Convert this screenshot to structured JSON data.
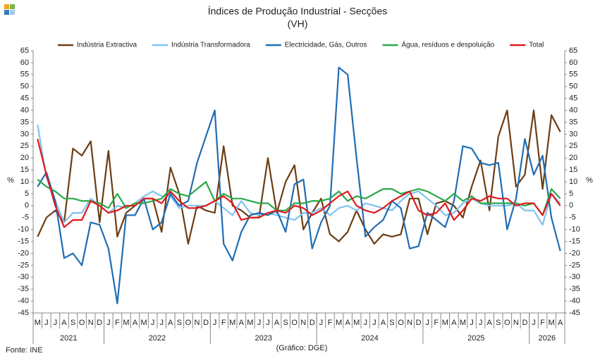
{
  "chart_data": {
    "type": "line",
    "title": "Índices de Produção Industrial - Secções",
    "subtitle": "(VH)",
    "y_label": "%",
    "y2_label": "%",
    "source": "Fonte: INE",
    "credit": "(Gráfico: DGE)",
    "categories": [
      "M",
      "J",
      "J",
      "A",
      "S",
      "O",
      "N",
      "D",
      "J",
      "F",
      "M",
      "A",
      "M",
      "J",
      "J",
      "A",
      "S",
      "O",
      "N",
      "D",
      "J",
      "F",
      "M",
      "A",
      "M",
      "J",
      "J",
      "A",
      "S",
      "O",
      "N",
      "D",
      "J",
      "F",
      "M",
      "A",
      "M",
      "J",
      "J",
      "A",
      "S",
      "O",
      "N",
      "D",
      "J",
      "F",
      "M",
      "A",
      "M",
      "J",
      "J",
      "A",
      "S",
      "O",
      "N",
      "D",
      "J",
      "F",
      "M",
      "A"
    ],
    "years": [
      "2021",
      "2022",
      "2023",
      "2024",
      "2025",
      "2026"
    ],
    "ylim": [
      -45,
      65
    ],
    "yticks": [
      -45,
      -40,
      -35,
      -30,
      -25,
      -20,
      -15,
      -10,
      -5,
      0,
      5,
      10,
      15,
      20,
      25,
      30,
      35,
      40,
      45,
      50,
      55,
      60,
      65
    ],
    "y2lim": [
      -45,
      65
    ],
    "y2ticks": [
      -45,
      -40,
      -35,
      -30,
      -25,
      -20,
      -15,
      -10,
      -5,
      0,
      5,
      10,
      15,
      20,
      25,
      30,
      35,
      40,
      45,
      50,
      55,
      60,
      65
    ],
    "grid": false,
    "series": [
      {
        "name": "Indústria Extractiva",
        "color": "#6b3d13",
        "values": [
          -13,
          -5,
          -2,
          -7,
          24,
          21,
          27,
          -7,
          23,
          -13,
          -3,
          0,
          3,
          3,
          -11,
          16,
          5,
          -16,
          0,
          -2,
          -3,
          25,
          0,
          -2,
          -5,
          -5,
          20,
          -3,
          10,
          17,
          -10,
          -3,
          3,
          -12,
          -15,
          -11,
          -2,
          -10,
          -16,
          -12,
          -13,
          -12,
          3,
          3,
          -12,
          1,
          2,
          0,
          -5,
          8,
          19,
          -2,
          29,
          40,
          8,
          13,
          40,
          7,
          38,
          31
        ]
      },
      {
        "name": "Indústria Transformadora",
        "color": "#7fc3f0",
        "values": [
          34,
          12,
          2,
          -7,
          -3,
          -3,
          3,
          0,
          -3,
          0,
          -1,
          1,
          4,
          6,
          4,
          4,
          -1,
          0,
          0,
          0,
          2,
          -1,
          -4,
          2,
          -3,
          -4,
          -3,
          -4,
          -5,
          -6,
          -3,
          -3,
          -1,
          -4,
          -1,
          0,
          -2,
          1,
          0,
          -1,
          -2,
          2,
          5,
          6,
          3,
          0,
          -4,
          -3,
          1,
          3,
          1,
          0,
          0,
          0,
          1,
          -2,
          -2,
          -8,
          5,
          1
        ]
      },
      {
        "name": "Electricidade, Gás, Outros",
        "color": "#1f6db5",
        "values": [
          8,
          14,
          2,
          -22,
          -20,
          -25,
          -7,
          -8,
          -18,
          -41,
          -4,
          -4,
          3,
          -10,
          -7,
          5,
          0,
          2,
          18,
          29,
          40,
          -16,
          -23,
          -11,
          -4,
          -3,
          -4,
          -2,
          -11,
          9,
          11,
          -18,
          -7,
          0,
          58,
          55,
          20,
          -13,
          -9,
          -6,
          2,
          -1,
          -18,
          -17,
          -3,
          -6,
          -9,
          2,
          25,
          24,
          18,
          17,
          18,
          -10,
          3,
          28,
          13,
          21,
          -5,
          -19
        ]
      },
      {
        "name": "Água, resíduos e despoluição",
        "color": "#2aa84a",
        "values": [
          11,
          8,
          6,
          3,
          3,
          2,
          2,
          1,
          -1,
          5,
          -1,
          1,
          1,
          2,
          3,
          7,
          5,
          4,
          7,
          10,
          2,
          5,
          3,
          3,
          2,
          1,
          1,
          -2,
          -2,
          1,
          1,
          2,
          2,
          3,
          6,
          2,
          4,
          3,
          5,
          7,
          7,
          5,
          6,
          7,
          6,
          4,
          2,
          5,
          2,
          4,
          1,
          1,
          1,
          1,
          1,
          0,
          1,
          -4,
          7,
          3
        ]
      },
      {
        "name": "Total",
        "color": "#e0191b",
        "values": [
          28,
          13,
          0,
          -9,
          -6,
          -6,
          2,
          0,
          -3,
          -2,
          0,
          0,
          3,
          3,
          1,
          6,
          2,
          -1,
          -1,
          0,
          2,
          4,
          1,
          -6,
          -5,
          -5,
          -3,
          -2,
          -3,
          0,
          -1,
          -4,
          -2,
          1,
          4,
          6,
          0,
          -2,
          -3,
          -1,
          2,
          4,
          6,
          -2,
          -4,
          -3,
          1,
          -6,
          -2,
          3,
          2,
          4,
          3,
          3,
          0,
          1,
          1,
          -4,
          5,
          0
        ]
      }
    ]
  }
}
